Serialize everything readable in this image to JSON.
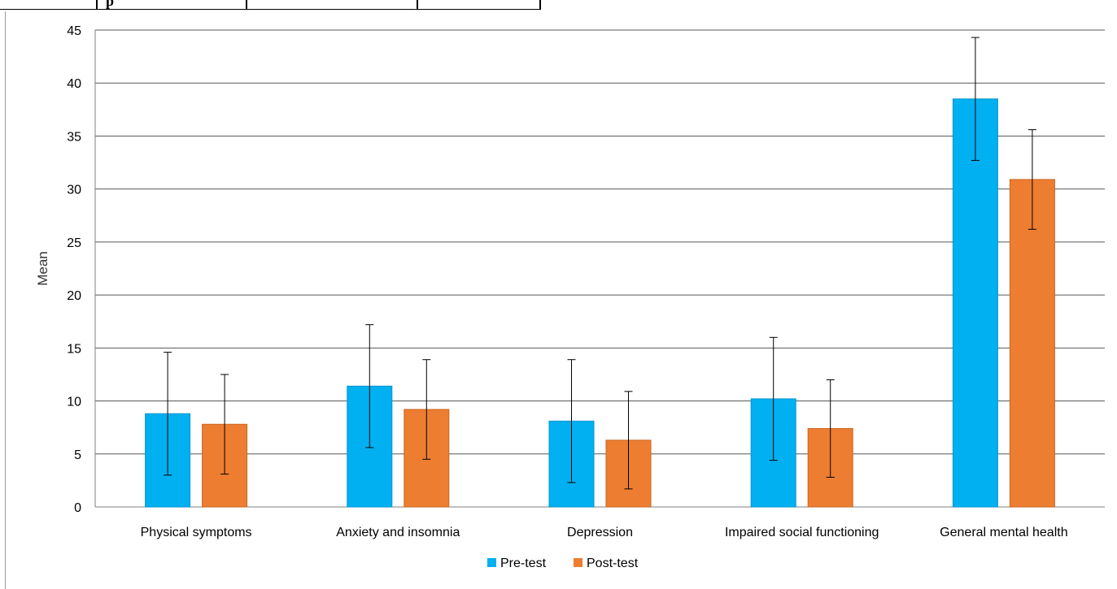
{
  "table_fragment": {
    "partial_text": "p"
  },
  "chart_data": {
    "type": "bar",
    "title": "",
    "xlabel": "",
    "ylabel": "Mean",
    "ylim": [
      0,
      45
    ],
    "yticks": [
      0,
      5,
      10,
      15,
      20,
      25,
      30,
      35,
      40,
      45
    ],
    "grid": true,
    "legend_position": "bottom",
    "categories": [
      "Physical symptoms",
      "Anxiety and insomnia",
      "Depression",
      "Impaired social functioning",
      "General mental health"
    ],
    "series": [
      {
        "name": "Pre-test",
        "color": "#00B0F0",
        "values": [
          8.8,
          11.4,
          8.1,
          10.2,
          38.5
        ],
        "error": [
          5.8,
          5.8,
          5.8,
          5.8,
          5.8
        ]
      },
      {
        "name": "Post-test",
        "color": "#ED7D31",
        "values": [
          7.8,
          9.2,
          6.3,
          7.4,
          30.9
        ],
        "error": [
          4.7,
          4.7,
          4.6,
          4.6,
          4.7
        ]
      }
    ]
  }
}
